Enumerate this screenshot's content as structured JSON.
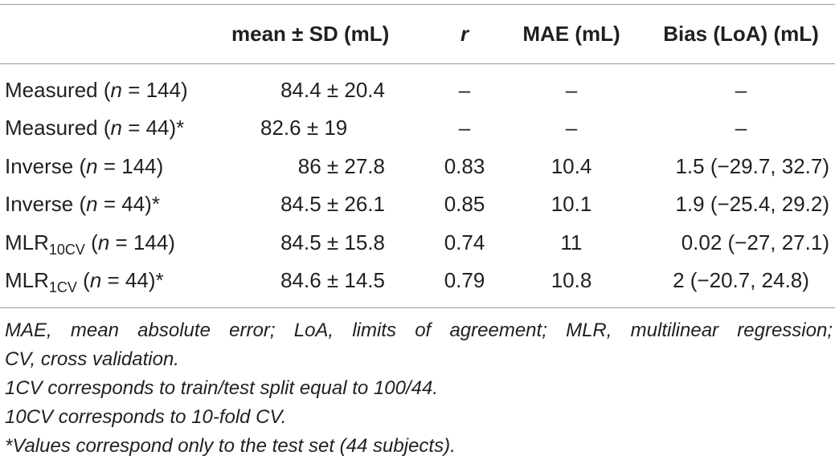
{
  "table": {
    "headers": {
      "mean": "mean ± SD (mL)",
      "r": "r",
      "mae": "MAE (mL)",
      "bias": "Bias (LoA) (mL)"
    },
    "rows": [
      {
        "label_pre": "Measured (",
        "label_n": "n",
        "label_post": " = 144)",
        "mean": "84.4 ± 20.4",
        "r": "–",
        "mae": "–",
        "bias": "–"
      },
      {
        "label_pre": "Measured (",
        "label_n": "n",
        "label_post": " = 44)*",
        "mean": "82.6 ± 19",
        "r": "–",
        "mae": "–",
        "bias": "–"
      },
      {
        "label_pre": "Inverse (",
        "label_n": "n",
        "label_post": " = 144)",
        "mean": "86 ± 27.8",
        "r": "0.83",
        "mae": "10.4",
        "bias": "1.5 (−29.7, 32.7)"
      },
      {
        "label_pre": "Inverse (",
        "label_n": "n",
        "label_post": " = 44)*",
        "mean": "84.5 ± 26.1",
        "r": "0.85",
        "mae": "10.1",
        "bias": "1.9 (−25.4, 29.2)"
      },
      {
        "label_pre": "MLR",
        "label_sub": "10CV",
        "label_mid": " (",
        "label_n": "n",
        "label_post": " = 144)",
        "mean": "84.5 ± 15.8",
        "r": "0.74",
        "mae": "11",
        "bias": "0.02 (−27, 27.1)"
      },
      {
        "label_pre": "MLR",
        "label_sub": "1CV",
        "label_mid": " (",
        "label_n": "n",
        "label_post": " = 44)*",
        "mean": "84.6 ± 14.5",
        "r": "0.79",
        "mae": "10.8",
        "bias": "2 (−20.7, 24.8)"
      }
    ]
  },
  "footnotes": [
    "MAE, mean absolute error; LoA, limits of agreement; MLR, multilinear regression;",
    "CV, cross validation.",
    "1CV corresponds to train/test split equal to 100/44.",
    "10CV corresponds to 10-fold CV.",
    "*Values correspond only to the test set (44 subjects)."
  ]
}
